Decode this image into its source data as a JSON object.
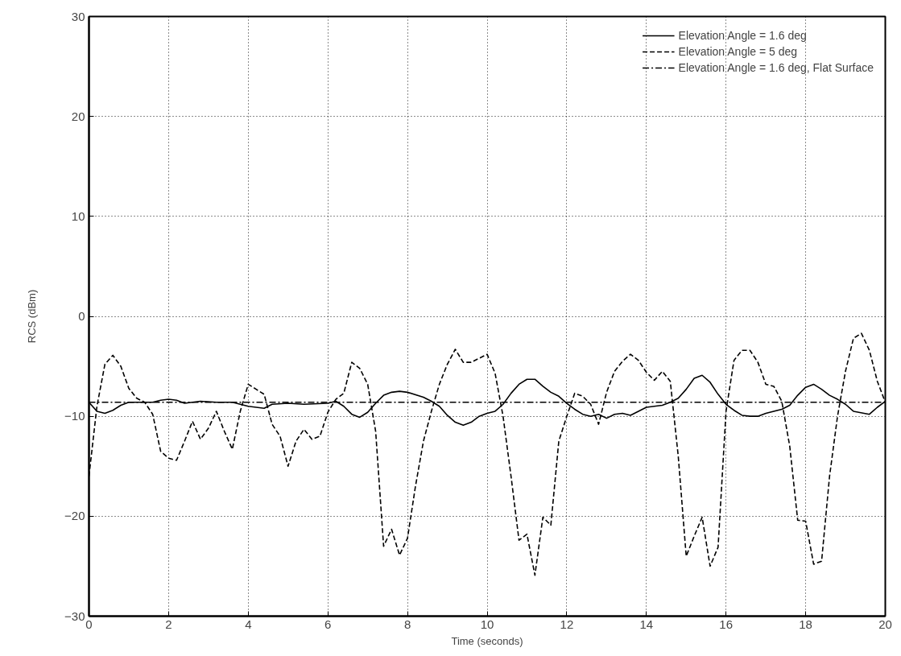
{
  "chart_data": {
    "type": "line",
    "xlabel": "Time (seconds)",
    "ylabel": "RCS (dBm)",
    "xlim": [
      0,
      20
    ],
    "ylim": [
      -30,
      30
    ],
    "xticks": [
      0,
      2,
      4,
      6,
      8,
      10,
      12,
      14,
      16,
      18,
      20
    ],
    "yticks": [
      -30,
      -20,
      -10,
      0,
      10,
      20,
      30
    ],
    "grid": true,
    "legend": "top right",
    "marker": "none",
    "series": [
      {
        "name": "Elevation Angle = 1.6 deg",
        "color": "#000000",
        "line_style": "solid",
        "x": [
          0,
          0.2,
          0.4,
          0.6,
          0.8,
          1.0,
          1.4,
          1.6,
          1.8,
          2.0,
          2.2,
          2.4,
          2.8,
          3.2,
          3.6,
          3.8,
          4.0,
          4.4,
          4.6,
          5.0,
          5.4,
          6.0,
          6.2,
          6.4,
          6.6,
          6.8,
          7.0,
          7.2,
          7.4,
          7.6,
          7.8,
          8.0,
          8.4,
          8.6,
          8.8,
          9.0,
          9.2,
          9.4,
          9.6,
          9.8,
          10.0,
          10.2,
          10.4,
          10.6,
          10.8,
          11.0,
          11.2,
          11.4,
          11.6,
          11.8,
          12.0,
          12.2,
          12.4,
          12.6,
          12.8,
          13.0,
          13.2,
          13.4,
          13.6,
          13.8,
          14.0,
          14.4,
          14.6,
          14.8,
          15.0,
          15.2,
          15.4,
          15.6,
          15.8,
          16.0,
          16.2,
          16.4,
          16.6,
          16.8,
          17.0,
          17.4,
          17.6,
          17.8,
          18.0,
          18.2,
          18.4,
          18.6,
          18.8,
          19.0,
          19.2,
          19.6,
          19.8,
          20.0
        ],
        "values": [
          -8.6,
          -9.5,
          -9.7,
          -9.4,
          -8.9,
          -8.6,
          -8.6,
          -8.6,
          -8.4,
          -8.3,
          -8.4,
          -8.7,
          -8.5,
          -8.6,
          -8.6,
          -8.8,
          -9.0,
          -9.2,
          -8.8,
          -8.7,
          -8.8,
          -8.7,
          -8.5,
          -9.0,
          -9.8,
          -10.1,
          -9.6,
          -8.7,
          -7.9,
          -7.6,
          -7.5,
          -7.6,
          -8.1,
          -8.5,
          -9.0,
          -9.9,
          -10.6,
          -10.9,
          -10.6,
          -10.0,
          -9.7,
          -9.5,
          -8.8,
          -7.7,
          -6.8,
          -6.3,
          -6.3,
          -7.0,
          -7.6,
          -8.0,
          -8.7,
          -9.3,
          -9.8,
          -10.0,
          -9.8,
          -10.2,
          -9.8,
          -9.7,
          -9.9,
          -9.5,
          -9.1,
          -8.9,
          -8.6,
          -8.2,
          -7.3,
          -6.2,
          -5.9,
          -6.6,
          -7.8,
          -8.8,
          -9.4,
          -9.9,
          -10.0,
          -10.0,
          -9.7,
          -9.3,
          -8.9,
          -7.9,
          -7.1,
          -6.8,
          -7.3,
          -7.9,
          -8.3,
          -8.8,
          -9.5,
          -9.8,
          -9.1,
          -8.5
        ]
      },
      {
        "name": "Elevation Angle = 5 deg",
        "color": "#000000",
        "line_style": "dashed",
        "x": [
          0,
          0.2,
          0.4,
          0.6,
          0.8,
          1.0,
          1.2,
          1.4,
          1.6,
          1.8,
          2.0,
          2.2,
          2.4,
          2.6,
          2.8,
          3.0,
          3.2,
          3.4,
          3.6,
          3.8,
          4.0,
          4.2,
          4.4,
          4.6,
          4.8,
          5.0,
          5.2,
          5.4,
          5.6,
          5.8,
          6.0,
          6.2,
          6.4,
          6.6,
          6.8,
          7.0,
          7.2,
          7.4,
          7.6,
          7.8,
          8.0,
          8.2,
          8.4,
          8.6,
          8.8,
          9.0,
          9.2,
          9.4,
          9.6,
          9.8,
          10.0,
          10.2,
          10.4,
          10.6,
          10.8,
          11.0,
          11.2,
          11.4,
          11.6,
          11.8,
          12.0,
          12.2,
          12.4,
          12.6,
          12.8,
          13.0,
          13.2,
          13.4,
          13.6,
          13.8,
          14.0,
          14.2,
          14.4,
          14.6,
          14.8,
          15.0,
          15.2,
          15.4,
          15.6,
          15.8,
          16.0,
          16.2,
          16.4,
          16.6,
          16.8,
          17.0,
          17.2,
          17.4,
          17.6,
          17.8,
          18.0,
          18.2,
          18.4,
          18.6,
          18.8,
          19.0,
          19.2,
          19.4,
          19.6,
          19.8,
          20.0
        ],
        "values": [
          -16,
          -9,
          -4.8,
          -3.9,
          -5,
          -7.2,
          -8.2,
          -8.6,
          -9.8,
          -13.5,
          -14.2,
          -14.4,
          -12.5,
          -10.5,
          -12.3,
          -11.2,
          -9.5,
          -11.5,
          -13.3,
          -9.5,
          -6.8,
          -7.3,
          -7.8,
          -10.8,
          -12,
          -15,
          -12.5,
          -11.3,
          -12.3,
          -12,
          -9.6,
          -8.3,
          -7.7,
          -4.6,
          -5.2,
          -6.8,
          -11.5,
          -23,
          -21.3,
          -23.9,
          -22.2,
          -17,
          -12.5,
          -9.5,
          -6.8,
          -4.8,
          -3.3,
          -4.6,
          -4.6,
          -4.2,
          -3.8,
          -5.7,
          -10,
          -16,
          -22.4,
          -21.8,
          -25.9,
          -20.1,
          -20.9,
          -12.5,
          -10,
          -7.7,
          -8,
          -8.8,
          -10.8,
          -7.6,
          -5.5,
          -4.5,
          -3.8,
          -4.4,
          -5.6,
          -6.4,
          -5.5,
          -6.5,
          -14,
          -24,
          -22,
          -20.1,
          -25,
          -23.1,
          -9.5,
          -4.4,
          -3.4,
          -3.4,
          -4.6,
          -6.8,
          -7,
          -8.5,
          -13,
          -20.4,
          -20.5,
          -24.8,
          -24.5,
          -16,
          -10,
          -5.5,
          -2.2,
          -1.7,
          -3.4,
          -6.5,
          -8.6
        ]
      },
      {
        "name": "Elevation Angle = 1.6 deg, Flat Surface",
        "color": "#000000",
        "line_style": "dashdot",
        "x": [
          0,
          20
        ],
        "values": [
          -8.6,
          -8.6
        ]
      }
    ]
  }
}
